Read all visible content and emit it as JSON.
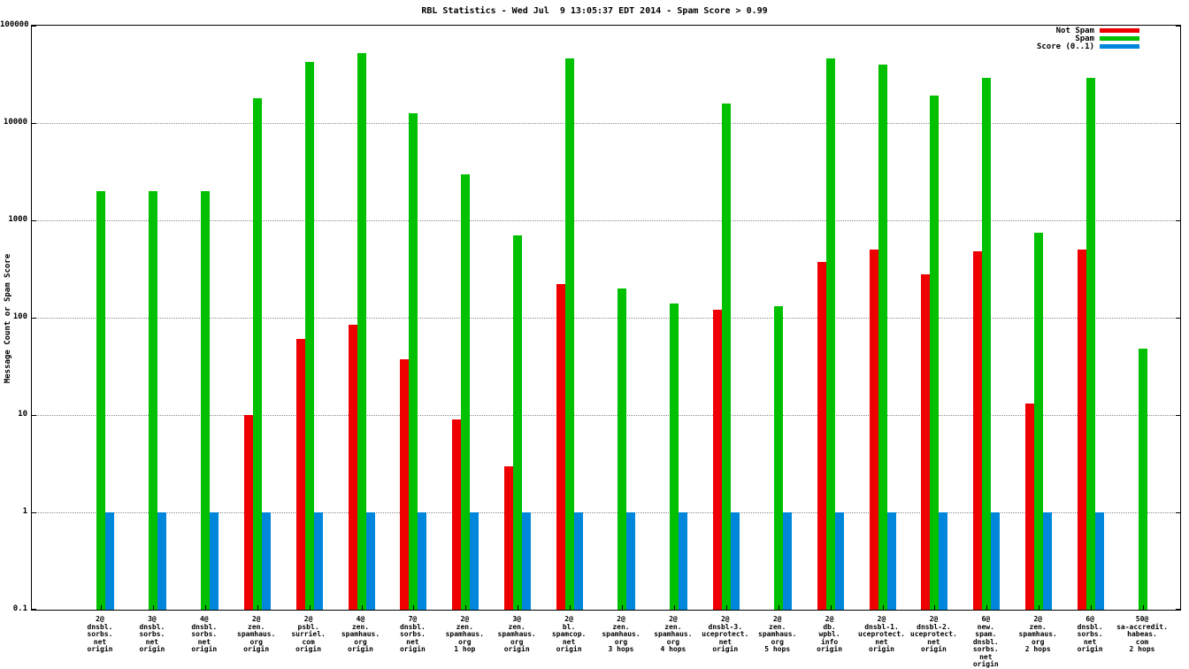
{
  "title": "RBL Statistics - Wed Jul  9 13:05:37 EDT 2014 - Spam Score > 0.99",
  "ylabel": "Message Count or Spam Score",
  "legend": {
    "items": [
      {
        "label": "Not Spam",
        "color": "#ee0000"
      },
      {
        "label": "Spam",
        "color": "#00c000"
      },
      {
        "label": "Score (0..1)",
        "color": "#0087dc"
      }
    ]
  },
  "chart_data": {
    "type": "bar",
    "y_scale": "log10",
    "ylim": [
      0.1,
      100000
    ],
    "yticks": [
      0.1,
      1,
      10,
      100,
      1000,
      10000,
      100000
    ],
    "ylabel": "Message Count or Spam Score",
    "grid": "horizontal-dotted",
    "legend_position": "top-right",
    "categories": [
      [
        "2@",
        "dnsbl.",
        "sorbs.",
        "net",
        "origin"
      ],
      [
        "3@",
        "dnsbl.",
        "sorbs.",
        "net",
        "origin"
      ],
      [
        "4@",
        "dnsbl.",
        "sorbs.",
        "net",
        "origin"
      ],
      [
        "2@",
        "zen.",
        "spamhaus.",
        "org",
        "origin"
      ],
      [
        "2@",
        "psbl.",
        "surriel.",
        "com",
        "origin"
      ],
      [
        "4@",
        "zen.",
        "spamhaus.",
        "org",
        "origin"
      ],
      [
        "7@",
        "dnsbl.",
        "sorbs.",
        "net",
        "origin"
      ],
      [
        "2@",
        "zen.",
        "spamhaus.",
        "org",
        "1 hop"
      ],
      [
        "3@",
        "zen.",
        "spamhaus.",
        "org",
        "origin"
      ],
      [
        "2@",
        "bl.",
        "spamcop.",
        "net",
        "origin"
      ],
      [
        "2@",
        "zen.",
        "spamhaus.",
        "org",
        "3 hops"
      ],
      [
        "2@",
        "zen.",
        "spamhaus.",
        "org",
        "4 hops"
      ],
      [
        "2@",
        "dnsbl-3.",
        "uceprotect.",
        "net",
        "origin"
      ],
      [
        "2@",
        "zen.",
        "spamhaus.",
        "org",
        "5 hops"
      ],
      [
        "2@",
        "db.",
        "wpbl.",
        "info",
        "origin"
      ],
      [
        "2@",
        "dnsbl-1.",
        "uceprotect.",
        "net",
        "origin"
      ],
      [
        "2@",
        "dnsbl-2.",
        "uceprotect.",
        "net",
        "origin"
      ],
      [
        "6@",
        "new.",
        "spam.",
        "dnsbl.",
        "sorbs.",
        "net",
        "origin"
      ],
      [
        "2@",
        "zen.",
        "spamhaus.",
        "org",
        "2 hops"
      ],
      [
        "6@",
        "dnsbl.",
        "sorbs.",
        "net",
        "origin"
      ],
      [
        "50@",
        "sa-accredit.",
        "habeas.",
        "com",
        "2 hops"
      ]
    ],
    "series": [
      {
        "name": "Not Spam",
        "color": "#ee0000",
        "values": [
          null,
          null,
          null,
          10,
          60,
          85,
          37,
          9,
          3,
          220,
          null,
          null,
          120,
          null,
          370,
          500,
          280,
          480,
          13,
          500,
          null
        ]
      },
      {
        "name": "Spam",
        "color": "#00c000",
        "values": [
          2000,
          2000,
          2000,
          18000,
          42000,
          52000,
          12500,
          3000,
          700,
          46000,
          200,
          140,
          16000,
          130,
          46000,
          40000,
          19000,
          29000,
          750,
          29000,
          48
        ]
      },
      {
        "name": "Score (0..1)",
        "color": "#0087dc",
        "values": [
          1,
          1,
          1,
          1,
          1,
          1,
          1,
          1,
          1,
          1,
          1,
          1,
          1,
          1,
          1,
          1,
          1,
          1,
          1,
          1,
          null
        ]
      }
    ]
  }
}
